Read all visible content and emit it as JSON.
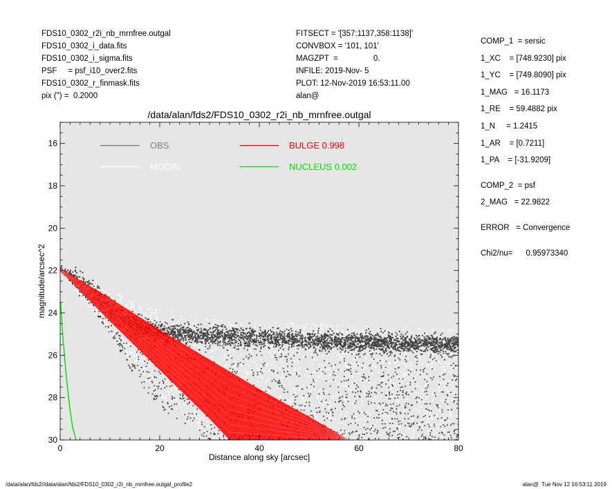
{
  "header_left": [
    "FDS10_0302_r2i_nb_mrnfree.outgal",
    "FDS10_0302_i_data.fits",
    "FDS10_0302_i_sigma.fits",
    "PSF     = psf_i10_over2.fits",
    "FDS10_0302_r_finmask.fits",
    "pix (\") =  0.2000"
  ],
  "header_mid": [
    "FITSECT = '[357:1137,358:1138]'",
    "CONVBOX = '101, 101'",
    "MAGZPT  =                0.",
    "INFILE: 2019-Nov- 5",
    "PLOT: 12-Nov-2019 16:53:11.00",
    "alan@"
  ],
  "header_right": {
    "comp1": [
      "COMP_1  = sersic",
      "1_XC    = [748.9230] pix",
      "1_YC    = [749.8090] pix",
      "1_MAG   = 16.1173",
      "1_RE    = 59.4882 pix",
      "1_N     = 1.2415",
      "1_AR    = [0.7211]",
      "1_PA    = [-31.9209]"
    ],
    "comp2": [
      "COMP_2  = psf",
      "2_MAG   = 22.9822"
    ],
    "error": "ERROR   = Convergence",
    "chi2": "Chi2/nu=      0.95973340"
  },
  "footer": {
    "left": "/data/alan/fds2//data/alan/fds2/FDS10_0302_r2i_nb_mrnfree.outgal_profile2",
    "right": "alan@  Tue Nov 12 16:53:11 2019"
  },
  "chart_data": {
    "type": "scatter",
    "title": "/data/alan/fds2/FDS10_0302_r2i_nb_mrnfree.outgal",
    "xlabel": "Distance along sky [arcsec]",
    "ylabel": "magnitude/arcsec^2",
    "xlim": [
      0,
      80
    ],
    "ylim": [
      30,
      15
    ],
    "y_inverted": true,
    "xticks": [
      0,
      20,
      40,
      60,
      80
    ],
    "yticks": [
      16,
      18,
      20,
      22,
      24,
      26,
      28,
      30
    ],
    "background_color": "#e6e6e6",
    "grid": false,
    "legend_position": "top",
    "legend": [
      {
        "label": "OBS",
        "color": "#7f7f7f"
      },
      {
        "label": "MODEL",
        "color": "#ffffff"
      },
      {
        "label": "BULGE  0.998",
        "color": "#ff0000"
      },
      {
        "label": "NUCLEUS  0.002",
        "color": "#00dd00"
      }
    ],
    "series": [
      {
        "name": "OBS",
        "kind": "points",
        "color": "#404040",
        "centre_profile": [
          [
            0,
            21.9
          ],
          [
            3,
            22.3
          ],
          [
            6,
            22.9
          ],
          [
            9,
            23.6
          ],
          [
            12,
            24.2
          ],
          [
            15,
            24.6
          ],
          [
            20,
            24.9
          ],
          [
            30,
            25.1
          ],
          [
            40,
            25.2
          ],
          [
            50,
            25.3
          ],
          [
            60,
            25.4
          ],
          [
            80,
            25.5
          ]
        ],
        "band_profile": [
          [
            0,
            22.0,
            22.0
          ],
          [
            5,
            22.4,
            23.3
          ],
          [
            10,
            23.1,
            25.0
          ],
          [
            15,
            23.8,
            27.0
          ],
          [
            20,
            24.2,
            28.5
          ],
          [
            30,
            24.5,
            30.0
          ],
          [
            50,
            24.8,
            30.0
          ],
          [
            80,
            24.8,
            30.0
          ]
        ]
      },
      {
        "name": "MODEL",
        "kind": "points",
        "color": "#ffffff",
        "band_profile": [
          [
            0,
            21.9,
            22.1
          ],
          [
            10,
            23.0,
            25.0
          ],
          [
            20,
            23.8,
            28.0
          ],
          [
            30,
            24.3,
            30.0
          ],
          [
            80,
            24.8,
            30.0
          ]
        ]
      },
      {
        "name": "BULGE  0.998",
        "kind": "band",
        "color": "#ff0000",
        "upper": [
          [
            0,
            21.9
          ],
          [
            10,
            23.3
          ],
          [
            20,
            24.8
          ],
          [
            30,
            26.2
          ],
          [
            40,
            27.6
          ],
          [
            50,
            28.9
          ],
          [
            58,
            30.0
          ]
        ],
        "lower": [
          [
            0,
            22.0
          ],
          [
            10,
            24.4
          ],
          [
            20,
            26.7
          ],
          [
            30,
            29.0
          ],
          [
            34,
            30.0
          ]
        ]
      },
      {
        "name": "NUCLEUS  0.002",
        "kind": "line",
        "color": "#00dd00",
        "points": [
          [
            0.1,
            23.5
          ],
          [
            0.5,
            25.0
          ],
          [
            1.0,
            26.4
          ],
          [
            1.5,
            27.6
          ],
          [
            2.0,
            28.6
          ],
          [
            2.5,
            29.4
          ],
          [
            3.2,
            30.0
          ]
        ]
      }
    ]
  }
}
